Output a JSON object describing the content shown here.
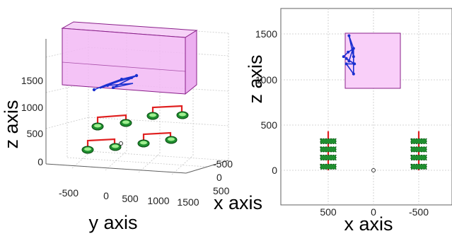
{
  "colors": {
    "box_fill": "#f2b8f4",
    "box_stroke": "#8a208a",
    "trajectory": "#1a2fd0",
    "connector": "#e02020",
    "tyre_fill": "#1f8f2f",
    "tyre_rim": "#9fef8f",
    "grid": "#c8c8c8",
    "axis": "#606060"
  },
  "chart_data": [
    {
      "type": "scatter",
      "view": "3d",
      "xlabel": "x axis",
      "ylabel": "y axis",
      "zlabel": "z axis",
      "x_ticks": [
        "-500",
        "0",
        "500"
      ],
      "y_ticks": [
        "-500",
        "0",
        "500",
        "1000",
        "1500"
      ],
      "z_ticks": [
        "0",
        "500",
        "1000",
        "1500"
      ],
      "grid": true,
      "shaded_box": {
        "y": [
          -600,
          1700
        ],
        "x": [
          -300,
          300
        ],
        "z": [
          900,
          1500
        ]
      },
      "wheel_units": [
        {
          "y": -400,
          "x": 500
        },
        {
          "y": 300,
          "x": 500
        },
        {
          "y": 500,
          "x": -500
        },
        {
          "y": 1300,
          "x": -500
        }
      ],
      "origin_marker": {
        "x": 0,
        "y": 0,
        "z": 0
      }
    },
    {
      "type": "scatter",
      "view": "front (x-z)",
      "xlabel": "x axis",
      "ylabel": "z axis",
      "x_ticks": [
        "500",
        "0",
        "-500"
      ],
      "y_ticks": [
        "0",
        "500",
        "1000",
        "1500"
      ],
      "xlim": [
        800,
        -800
      ],
      "ylim": [
        -300,
        1800
      ],
      "grid": true,
      "shaded_box": {
        "x": [
          -300,
          300
        ],
        "z": [
          900,
          1500
        ]
      },
      "trajectory": [
        {
          "x": 330,
          "z": 1250
        },
        {
          "x": 280,
          "z": 1300
        },
        {
          "x": 230,
          "z": 1330
        },
        {
          "x": 270,
          "z": 1200
        },
        {
          "x": 300,
          "z": 1230
        },
        {
          "x": 210,
          "z": 1170
        },
        {
          "x": 300,
          "z": 1170
        },
        {
          "x": 220,
          "z": 1060
        },
        {
          "x": 220,
          "z": 1340
        },
        {
          "x": 270,
          "z": 1480
        },
        {
          "x": 220,
          "z": 1250
        }
      ],
      "wheel_columns": [
        {
          "x": 500,
          "z_levels": [
            40,
            140,
            230,
            320
          ],
          "rod_z": [
            0,
            430
          ]
        },
        {
          "x": -500,
          "z_levels": [
            40,
            140,
            230,
            320
          ],
          "rod_z": [
            0,
            430
          ]
        }
      ],
      "origin_marker": {
        "x": 0,
        "z": 0
      }
    }
  ]
}
